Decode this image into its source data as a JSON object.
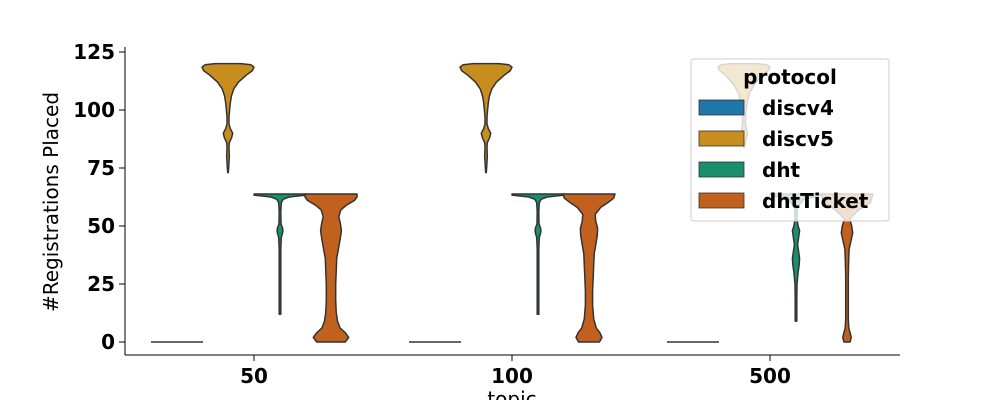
{
  "chart_data": {
    "type": "violin",
    "title": "",
    "xlabel": "topic",
    "ylabel": "#Registrations Placed",
    "categories": [
      "50",
      "100",
      "500"
    ],
    "ylim": [
      -5,
      128
    ],
    "yticks": [
      0,
      25,
      50,
      75,
      100,
      125
    ],
    "grid": false,
    "legend": {
      "title": "protocol",
      "placement": "top-right"
    },
    "series": [
      {
        "name": "discv4",
        "color": "#1f77a8",
        "violins": [
          {
            "category": "50",
            "profile": [
              [
                0,
                1.0
              ],
              [
                0,
                1.0
              ]
            ]
          },
          {
            "category": "100",
            "profile": [
              [
                0,
                1.0
              ],
              [
                0,
                1.0
              ]
            ]
          },
          {
            "category": "500",
            "profile": [
              [
                0,
                1.0
              ],
              [
                0,
                1.0
              ]
            ]
          }
        ]
      },
      {
        "name": "discv5",
        "color": "#c88d1f",
        "violins": [
          {
            "category": "50",
            "profile": [
              [
                73,
                0.01
              ],
              [
                76,
                0.03
              ],
              [
                80,
                0.05
              ],
              [
                84,
                0.04
              ],
              [
                86,
                0.05
              ],
              [
                88,
                0.14
              ],
              [
                90,
                0.18
              ],
              [
                92,
                0.09
              ],
              [
                94,
                0.04
              ],
              [
                97,
                0.04
              ],
              [
                100,
                0.06
              ],
              [
                103,
                0.09
              ],
              [
                106,
                0.13
              ],
              [
                109,
                0.22
              ],
              [
                112,
                0.4
              ],
              [
                115,
                0.7
              ],
              [
                117,
                0.94
              ],
              [
                118.5,
                1.0
              ],
              [
                119.5,
                0.88
              ],
              [
                120,
                0.5
              ]
            ]
          },
          {
            "category": "100",
            "profile": [
              [
                73,
                0.01
              ],
              [
                76,
                0.03
              ],
              [
                80,
                0.05
              ],
              [
                84,
                0.04
              ],
              [
                86,
                0.05
              ],
              [
                88,
                0.14
              ],
              [
                90,
                0.18
              ],
              [
                92,
                0.09
              ],
              [
                94,
                0.04
              ],
              [
                97,
                0.04
              ],
              [
                100,
                0.06
              ],
              [
                103,
                0.09
              ],
              [
                106,
                0.13
              ],
              [
                109,
                0.22
              ],
              [
                112,
                0.4
              ],
              [
                115,
                0.7
              ],
              [
                117,
                0.94
              ],
              [
                118.5,
                1.0
              ],
              [
                119.5,
                0.88
              ],
              [
                120,
                0.5
              ]
            ]
          },
          {
            "category": "500",
            "profile": [
              [
                84,
                0.02
              ],
              [
                86,
                0.04
              ],
              [
                88,
                0.1
              ],
              [
                90,
                0.14
              ],
              [
                92,
                0.08
              ],
              [
                95,
                0.05
              ],
              [
                99,
                0.07
              ],
              [
                103,
                0.12
              ],
              [
                107,
                0.2
              ],
              [
                111,
                0.4
              ],
              [
                115,
                0.72
              ],
              [
                117,
                0.94
              ],
              [
                118.5,
                1.0
              ],
              [
                119.5,
                0.88
              ],
              [
                120,
                0.5
              ]
            ]
          }
        ]
      },
      {
        "name": "dht",
        "color": "#1a8f6c",
        "violins": [
          {
            "category": "50",
            "profile": [
              [
                12,
                0.03
              ],
              [
                20,
                0.03
              ],
              [
                30,
                0.03
              ],
              [
                40,
                0.03
              ],
              [
                45,
                0.05
              ],
              [
                47,
                0.1
              ],
              [
                48,
                0.11
              ],
              [
                49,
                0.1
              ],
              [
                51,
                0.04
              ],
              [
                56,
                0.03
              ],
              [
                60,
                0.05
              ],
              [
                61.5,
                0.12
              ],
              [
                62.5,
                0.35
              ],
              [
                63.3,
                1.0
              ],
              [
                63.8,
                1.0
              ]
            ]
          },
          {
            "category": "100",
            "profile": [
              [
                12,
                0.03
              ],
              [
                20,
                0.03
              ],
              [
                30,
                0.03
              ],
              [
                40,
                0.03
              ],
              [
                45,
                0.05
              ],
              [
                47,
                0.1
              ],
              [
                48,
                0.11
              ],
              [
                49,
                0.1
              ],
              [
                51,
                0.04
              ],
              [
                56,
                0.03
              ],
              [
                60,
                0.05
              ],
              [
                61.5,
                0.12
              ],
              [
                62.5,
                0.35
              ],
              [
                63.3,
                1.0
              ],
              [
                63.8,
                1.0
              ]
            ]
          },
          {
            "category": "500",
            "profile": [
              [
                9,
                0.03
              ],
              [
                18,
                0.03
              ],
              [
                25,
                0.04
              ],
              [
                30,
                0.08
              ],
              [
                33,
                0.12
              ],
              [
                36,
                0.14
              ],
              [
                39,
                0.1
              ],
              [
                42,
                0.06
              ],
              [
                45,
                0.1
              ],
              [
                48,
                0.14
              ],
              [
                50,
                0.08
              ],
              [
                53,
                0.04
              ],
              [
                58,
                0.05
              ],
              [
                61.5,
                0.3
              ],
              [
                63.3,
                1.0
              ],
              [
                63.8,
                1.0
              ]
            ]
          }
        ]
      },
      {
        "name": "dhtTicket",
        "color": "#c2601e",
        "violins": [
          {
            "category": "50",
            "profile": [
              [
                0,
                0.55
              ],
              [
                2,
                0.68
              ],
              [
                4,
                0.55
              ],
              [
                6,
                0.35
              ],
              [
                9,
                0.25
              ],
              [
                13,
                0.2
              ],
              [
                18,
                0.18
              ],
              [
                25,
                0.18
              ],
              [
                30,
                0.2
              ],
              [
                36,
                0.22
              ],
              [
                41,
                0.3
              ],
              [
                45,
                0.36
              ],
              [
                48,
                0.4
              ],
              [
                51,
                0.36
              ],
              [
                54,
                0.3
              ],
              [
                57,
                0.38
              ],
              [
                59,
                0.6
              ],
              [
                61,
                0.9
              ],
              [
                62.5,
                1.0
              ],
              [
                63.8,
                1.0
              ]
            ]
          },
          {
            "category": "100",
            "profile": [
              [
                0,
                0.4
              ],
              [
                2,
                0.5
              ],
              [
                4,
                0.42
              ],
              [
                6,
                0.28
              ],
              [
                10,
                0.18
              ],
              [
                16,
                0.14
              ],
              [
                22,
                0.14
              ],
              [
                28,
                0.16
              ],
              [
                33,
                0.18
              ],
              [
                38,
                0.2
              ],
              [
                42,
                0.26
              ],
              [
                46,
                0.32
              ],
              [
                49,
                0.33
              ],
              [
                52,
                0.26
              ],
              [
                55,
                0.24
              ],
              [
                58,
                0.45
              ],
              [
                60,
                0.72
              ],
              [
                62,
                0.95
              ],
              [
                63.8,
                1.0
              ]
            ]
          },
          {
            "category": "500",
            "profile": [
              [
                0,
                0.12
              ],
              [
                2,
                0.16
              ],
              [
                4,
                0.12
              ],
              [
                6,
                0.07
              ],
              [
                10,
                0.05
              ],
              [
                16,
                0.05
              ],
              [
                22,
                0.05
              ],
              [
                28,
                0.05
              ],
              [
                34,
                0.06
              ],
              [
                40,
                0.08
              ],
              [
                44,
                0.16
              ],
              [
                47,
                0.22
              ],
              [
                50,
                0.18
              ],
              [
                53,
                0.1
              ],
              [
                57,
                0.45
              ],
              [
                60,
                0.9
              ],
              [
                63.8,
                1.0
              ]
            ]
          }
        ]
      }
    ]
  }
}
